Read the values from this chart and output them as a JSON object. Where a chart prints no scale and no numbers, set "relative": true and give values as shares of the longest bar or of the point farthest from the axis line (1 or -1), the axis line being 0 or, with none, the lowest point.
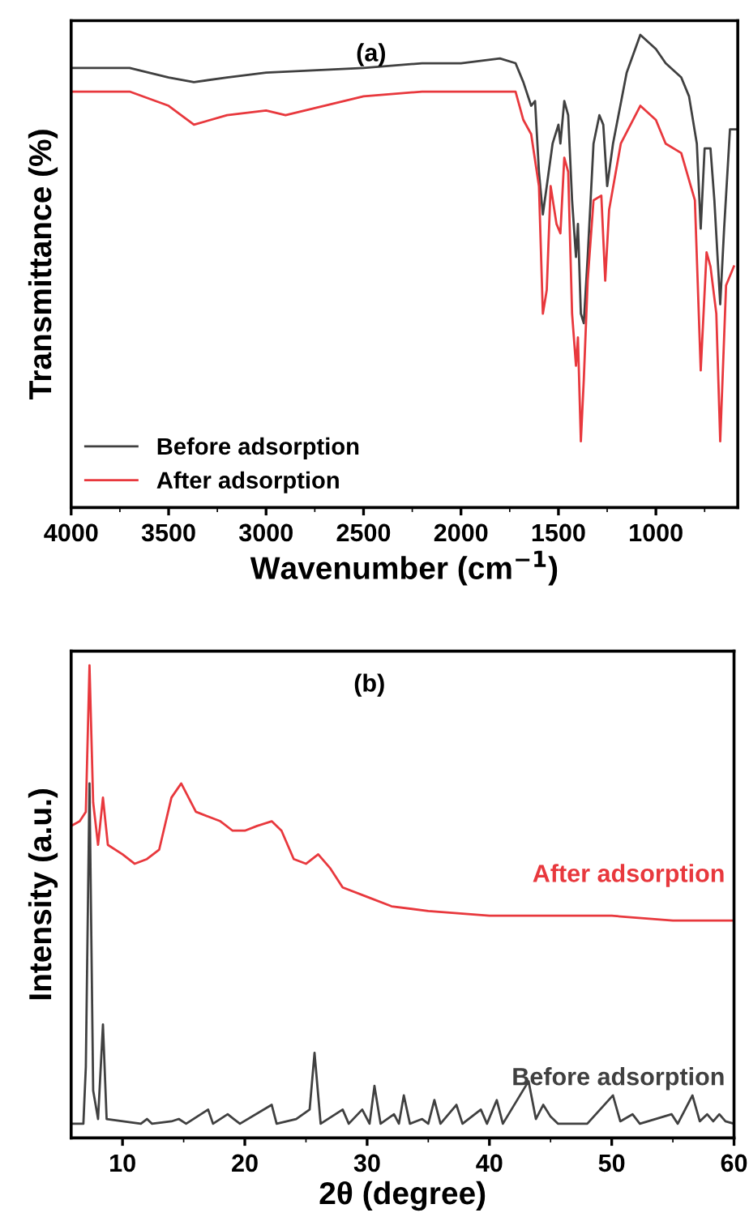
{
  "chart_data": [
    {
      "type": "line",
      "title": "(a)",
      "xlabel": "Wavenumber (cm$^{−1}$)",
      "ylabel": "Transmittance (%)",
      "relative": true,
      "xlim": [
        4000,
        580
      ],
      "xticks": [
        4000,
        3500,
        3000,
        2500,
        2000,
        1500,
        1000
      ],
      "legend": "bottom left",
      "grid": false,
      "series": [
        {
          "name": "Before adsorption",
          "color": "#404040",
          "x": [
            4000,
            3700,
            3500,
            3370,
            3200,
            3000,
            2500,
            2200,
            2000,
            1800,
            1720,
            1680,
            1640,
            1620,
            1600,
            1580,
            1560,
            1530,
            1500,
            1490,
            1470,
            1450,
            1430,
            1410,
            1400,
            1385,
            1370,
            1350,
            1320,
            1290,
            1270,
            1250,
            1220,
            1150,
            1080,
            1000,
            950,
            870,
            830,
            790,
            770,
            750,
            720,
            700,
            670,
            650,
            620,
            590
          ],
          "values": [
            0.93,
            0.93,
            0.91,
            0.9,
            0.91,
            0.92,
            0.93,
            0.94,
            0.94,
            0.95,
            0.94,
            0.9,
            0.85,
            0.86,
            0.71,
            0.62,
            0.68,
            0.77,
            0.81,
            0.77,
            0.86,
            0.83,
            0.65,
            0.53,
            0.6,
            0.41,
            0.39,
            0.53,
            0.77,
            0.83,
            0.81,
            0.68,
            0.77,
            0.92,
            1.0,
            0.97,
            0.94,
            0.91,
            0.87,
            0.77,
            0.59,
            0.76,
            0.76,
            0.65,
            0.43,
            0.59,
            0.8,
            0.8
          ]
        },
        {
          "name": "After adsorption",
          "color": "#e8383d",
          "x": [
            4000,
            3700,
            3500,
            3370,
            3200,
            3000,
            2900,
            2500,
            2200,
            1800,
            1720,
            1680,
            1640,
            1600,
            1580,
            1560,
            1540,
            1510,
            1490,
            1470,
            1450,
            1430,
            1410,
            1400,
            1385,
            1370,
            1350,
            1320,
            1280,
            1260,
            1240,
            1180,
            1080,
            1000,
            950,
            870,
            800,
            770,
            740,
            720,
            690,
            670,
            640,
            600
          ],
          "values": [
            0.88,
            0.88,
            0.85,
            0.81,
            0.83,
            0.84,
            0.83,
            0.87,
            0.88,
            0.88,
            0.88,
            0.82,
            0.79,
            0.68,
            0.41,
            0.46,
            0.68,
            0.6,
            0.58,
            0.74,
            0.71,
            0.41,
            0.3,
            0.36,
            0.14,
            0.27,
            0.48,
            0.65,
            0.66,
            0.48,
            0.63,
            0.77,
            0.85,
            0.82,
            0.77,
            0.75,
            0.65,
            0.29,
            0.54,
            0.51,
            0.41,
            0.14,
            0.47,
            0.51
          ]
        }
      ]
    },
    {
      "type": "line",
      "title": "(b)",
      "xlabel": "2θ (degree)",
      "ylabel": "Intensity (a.u.)",
      "relative": true,
      "xlim": [
        5.8,
        60
      ],
      "xticks": [
        10,
        20,
        30,
        40,
        50,
        60
      ],
      "grid": false,
      "series": [
        {
          "name": "After adsorption",
          "color": "#e8383d",
          "x": [
            5.8,
            6.5,
            7.0,
            7.3,
            7.6,
            8.0,
            8.4,
            8.8,
            10,
            11,
            12,
            13,
            14,
            14.8,
            16,
            17,
            18,
            19,
            20,
            21,
            22.2,
            23,
            24,
            25,
            26,
            27,
            28,
            30,
            32,
            35,
            40,
            45,
            50,
            55,
            60
          ],
          "values": [
            0.66,
            0.67,
            0.69,
            1.0,
            0.71,
            0.62,
            0.72,
            0.62,
            0.6,
            0.58,
            0.59,
            0.61,
            0.72,
            0.75,
            0.69,
            0.68,
            0.67,
            0.65,
            0.65,
            0.66,
            0.67,
            0.65,
            0.59,
            0.58,
            0.6,
            0.57,
            0.53,
            0.51,
            0.49,
            0.48,
            0.47,
            0.47,
            0.47,
            0.46,
            0.46
          ]
        },
        {
          "name": "Before adsorption",
          "color": "#404040",
          "x": [
            5.8,
            6.8,
            7.0,
            7.3,
            7.6,
            8.0,
            8.4,
            8.7,
            11.5,
            12.0,
            12.4,
            14.0,
            14.6,
            15.2,
            17.0,
            17.4,
            18.6,
            19.1,
            19.6,
            22.2,
            22.6,
            24.2,
            25.3,
            25.7,
            26.2,
            28.0,
            28.5,
            29.6,
            30.2,
            30.6,
            31.1,
            32.2,
            32.6,
            33.0,
            33.5,
            34.5,
            35.0,
            35.5,
            36.0,
            37.3,
            37.8,
            39.3,
            39.8,
            40.6,
            41.1,
            43.2,
            43.8,
            44.4,
            45.0,
            45.6,
            48.0,
            50.1,
            50.7,
            51.7,
            52.3,
            54.9,
            55.4,
            56.6,
            57.2,
            57.8,
            58.3,
            58.8,
            59.3,
            60
          ],
          "values": [
            0.03,
            0.03,
            0.15,
            0.75,
            0.1,
            0.04,
            0.24,
            0.04,
            0.03,
            0.04,
            0.03,
            0.035,
            0.04,
            0.03,
            0.06,
            0.03,
            0.05,
            0.04,
            0.03,
            0.07,
            0.03,
            0.04,
            0.06,
            0.18,
            0.03,
            0.06,
            0.03,
            0.06,
            0.03,
            0.11,
            0.03,
            0.05,
            0.03,
            0.09,
            0.03,
            0.04,
            0.03,
            0.08,
            0.03,
            0.07,
            0.03,
            0.06,
            0.03,
            0.08,
            0.03,
            0.12,
            0.04,
            0.07,
            0.045,
            0.03,
            0.03,
            0.09,
            0.035,
            0.05,
            0.03,
            0.05,
            0.03,
            0.09,
            0.035,
            0.05,
            0.035,
            0.05,
            0.035,
            0.03
          ]
        }
      ]
    }
  ]
}
